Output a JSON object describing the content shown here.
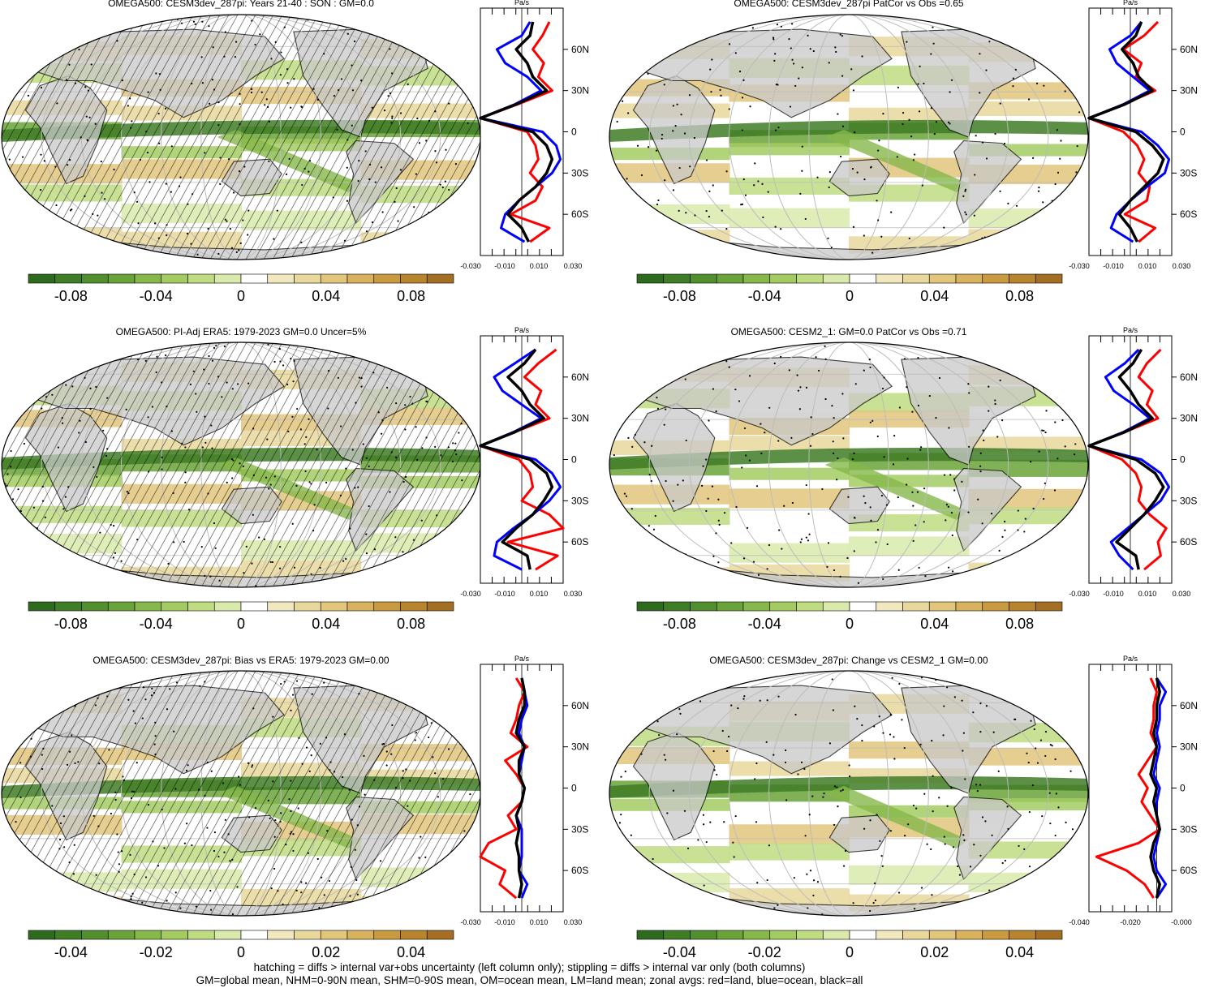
{
  "chart_data": [
    {
      "type": "heatmap",
      "title": "OMEGA500: CESM3dev_287pi: Years 21-40 : SON : GM=0.0",
      "colorbar_ticks": [
        "-0.08",
        "-0.04",
        "0",
        "0.04",
        "0.08"
      ],
      "colorbar_range": [
        -0.1,
        0.1
      ],
      "zonal_profile": {
        "units": "Pa/s",
        "x_ticks": [
          "-0.030",
          "-0.010",
          "0.010",
          "0.030"
        ],
        "xlim": [
          -0.03,
          0.03
        ],
        "y_ticks": [
          "60N",
          "30N",
          "0",
          "30S",
          "60S"
        ],
        "lat": [
          80,
          70,
          60,
          50,
          40,
          30,
          20,
          10,
          0,
          -10,
          -20,
          -30,
          -40,
          -50,
          -60,
          -70,
          -80
        ],
        "series": [
          {
            "color": "#ff0000",
            "values": [
              0.02,
              0.015,
              0.008,
              0.016,
              0.012,
              0.022,
              -0.003,
              -0.03,
              0.004,
              0.01,
              0.012,
              0.006,
              0.015,
              0.01,
              -0.008,
              0.02,
              0.006
            ]
          },
          {
            "color": "#0000ff",
            "values": [
              0.006,
              0.0,
              -0.018,
              -0.012,
              0.004,
              0.014,
              -0.005,
              -0.03,
              0.015,
              0.025,
              0.028,
              0.022,
              0.01,
              -0.002,
              -0.012,
              -0.015,
              0.002
            ]
          },
          {
            "color": "#000000",
            "values": [
              0.008,
              0.006,
              -0.004,
              0.004,
              0.008,
              0.018,
              -0.004,
              -0.03,
              0.008,
              0.018,
              0.022,
              0.018,
              0.01,
              -0.002,
              -0.01,
              0.0,
              0.005
            ]
          }
        ]
      }
    },
    {
      "type": "heatmap",
      "title": "OMEGA500: CESM3dev_287pi PatCor vs Obs =0.65",
      "colorbar_ticks": [
        "-0.08",
        "-0.04",
        "0",
        "0.04",
        "0.08"
      ],
      "colorbar_range": [
        -0.1,
        0.1
      ],
      "zonal_profile": {
        "units": "Pa/s",
        "x_ticks": [
          "-0.030",
          "-0.010",
          "0.010",
          "0.030"
        ],
        "xlim": [
          -0.03,
          0.03
        ],
        "y_ticks": [
          "60N",
          "30N",
          "0",
          "30S",
          "60S"
        ],
        "lat": [
          80,
          70,
          60,
          50,
          40,
          30,
          20,
          10,
          0,
          -10,
          -20,
          -30,
          -40,
          -50,
          -60,
          -70,
          -80
        ],
        "series": [
          {
            "color": "#ff0000",
            "values": [
              0.02,
              0.01,
              -0.005,
              0.008,
              0.004,
              0.018,
              -0.005,
              -0.03,
              -0.005,
              0.005,
              0.01,
              0.006,
              0.014,
              0.012,
              -0.004,
              0.018,
              0.006
            ]
          },
          {
            "color": "#0000ff",
            "values": [
              0.008,
              0.0,
              -0.015,
              -0.01,
              0.002,
              0.014,
              -0.005,
              -0.03,
              0.008,
              0.02,
              0.028,
              0.025,
              0.012,
              0.0,
              -0.01,
              -0.014,
              0.002
            ]
          },
          {
            "color": "#000000",
            "values": [
              0.008,
              0.004,
              -0.006,
              0.002,
              0.006,
              0.016,
              -0.004,
              -0.03,
              0.004,
              0.016,
              0.024,
              0.02,
              0.01,
              0.0,
              -0.008,
              0.0,
              0.005
            ]
          }
        ]
      }
    },
    {
      "type": "heatmap",
      "title": "OMEGA500: PI-Adj ERA5: 1979-2023 GM=0.0 Uncer=5%",
      "colorbar_ticks": [
        "-0.08",
        "-0.04",
        "0",
        "0.04",
        "0.08"
      ],
      "colorbar_range": [
        -0.1,
        0.1
      ],
      "zonal_profile": {
        "units": "Pa/s",
        "x_ticks": [
          "-0.030",
          "-0.010",
          "0.010",
          "0.030"
        ],
        "xlim": [
          -0.03,
          0.03
        ],
        "y_ticks": [
          "60N",
          "30N",
          "0",
          "30S",
          "60S"
        ],
        "lat": [
          80,
          70,
          60,
          50,
          40,
          30,
          20,
          10,
          0,
          -10,
          -20,
          -30,
          -40,
          -50,
          -60,
          -70,
          -80
        ],
        "series": [
          {
            "color": "#ff0000",
            "values": [
              0.025,
              0.012,
              0.002,
              0.014,
              0.01,
              0.02,
              -0.005,
              -0.03,
              -0.002,
              0.006,
              0.008,
              0.0,
              0.02,
              0.03,
              -0.01,
              0.026,
              0.01
            ]
          },
          {
            "color": "#0000ff",
            "values": [
              0.01,
              -0.005,
              -0.02,
              -0.014,
              0.0,
              0.014,
              -0.006,
              -0.03,
              0.01,
              0.022,
              0.028,
              0.02,
              0.008,
              -0.006,
              -0.018,
              -0.02,
              0.0
            ]
          },
          {
            "color": "#000000",
            "values": [
              0.01,
              0.002,
              -0.01,
              0.0,
              0.006,
              0.016,
              -0.005,
              -0.03,
              0.006,
              0.018,
              0.022,
              0.016,
              0.008,
              -0.004,
              -0.014,
              0.004,
              0.006
            ]
          }
        ]
      }
    },
    {
      "type": "heatmap",
      "title": "OMEGA500: CESM2_1: GM=0.0 PatCor vs Obs =0.71",
      "colorbar_ticks": [
        "-0.08",
        "-0.04",
        "0",
        "0.04",
        "0.08"
      ],
      "colorbar_range": [
        -0.1,
        0.1
      ],
      "zonal_profile": {
        "units": "Pa/s",
        "x_ticks": [
          "-0.030",
          "-0.010",
          "0.010",
          "0.030"
        ],
        "xlim": [
          -0.03,
          0.03
        ],
        "y_ticks": [
          "60N",
          "30N",
          "0",
          "30S",
          "60S"
        ],
        "lat": [
          80,
          70,
          60,
          50,
          40,
          30,
          20,
          10,
          0,
          -10,
          -20,
          -30,
          -40,
          -50,
          -60,
          -70,
          -80
        ],
        "series": [
          {
            "color": "#ff0000",
            "values": [
              0.022,
              0.012,
              0.006,
              0.016,
              0.012,
              0.02,
              -0.004,
              -0.03,
              -0.006,
              0.004,
              0.008,
              0.006,
              0.014,
              0.026,
              0.02,
              0.022,
              0.01
            ]
          },
          {
            "color": "#0000ff",
            "values": [
              0.006,
              -0.004,
              -0.018,
              -0.012,
              0.002,
              0.014,
              -0.005,
              -0.03,
              0.008,
              0.022,
              0.028,
              0.022,
              0.01,
              -0.002,
              -0.014,
              -0.008,
              0.002
            ]
          },
          {
            "color": "#000000",
            "values": [
              0.008,
              0.002,
              -0.008,
              0.0,
              0.006,
              0.016,
              -0.004,
              -0.03,
              0.004,
              0.018,
              0.024,
              0.018,
              0.01,
              0.0,
              -0.01,
              0.004,
              0.006
            ]
          }
        ]
      }
    },
    {
      "type": "heatmap",
      "title": "OMEGA500: CESM3dev_287pi: Bias vs ERA5: 1979-2023  GM=0.00",
      "colorbar_ticks": [
        "-0.04",
        "-0.02",
        "0",
        "0.02",
        "0.04"
      ],
      "colorbar_range": [
        -0.05,
        0.05
      ],
      "zonal_profile": {
        "units": "Pa/s",
        "x_ticks": [
          "-0.030",
          "-0.010",
          "0.010",
          "0.030"
        ],
        "xlim": [
          -0.03,
          0.03
        ],
        "y_ticks": [
          "60N",
          "30N",
          "0",
          "30S",
          "60S"
        ],
        "lat": [
          80,
          70,
          60,
          50,
          40,
          30,
          20,
          10,
          0,
          -10,
          -20,
          -30,
          -40,
          -50,
          -60,
          -70,
          -80
        ],
        "series": [
          {
            "color": "#ff0000",
            "values": [
              -0.004,
              0.002,
              -0.002,
              -0.004,
              -0.008,
              0.004,
              -0.012,
              -0.004,
              0.002,
              0.0,
              -0.01,
              -0.004,
              -0.024,
              -0.03,
              -0.012,
              -0.016,
              -0.004
            ]
          },
          {
            "color": "#0000ff",
            "values": [
              0.0,
              0.002,
              0.004,
              0.0,
              -0.002,
              0.002,
              0.0,
              -0.002,
              0.002,
              0.0,
              -0.004,
              0.0,
              0.0,
              0.0,
              -0.002,
              0.004,
              0.0
            ]
          },
          {
            "color": "#000000",
            "values": [
              0.0,
              0.002,
              0.002,
              -0.002,
              -0.004,
              0.002,
              -0.002,
              -0.002,
              0.002,
              0.0,
              -0.004,
              -0.002,
              -0.004,
              -0.002,
              -0.002,
              0.0,
              -0.002
            ]
          }
        ]
      }
    },
    {
      "type": "heatmap",
      "title": "OMEGA500: CESM3dev_287pi: Change vs CESM2_1 GM=0.00",
      "colorbar_ticks": [
        "-0.04",
        "-0.02",
        "0",
        "0.02",
        "0.04"
      ],
      "colorbar_range": [
        -0.05,
        0.05
      ],
      "zonal_profile": {
        "units": "Pa/s",
        "x_ticks": [
          "-0.040",
          "-0.020",
          "-0.000"
        ],
        "xlim": [
          -0.045,
          0.01
        ],
        "y_ticks": [
          "60N",
          "30N",
          "0",
          "30S",
          "60S"
        ],
        "lat": [
          80,
          70,
          60,
          50,
          40,
          30,
          20,
          10,
          0,
          -10,
          -20,
          -30,
          -40,
          -50,
          -60,
          -70,
          -80
        ],
        "series": [
          {
            "color": "#ff0000",
            "values": [
              -0.004,
              0.0,
              -0.002,
              -0.002,
              -0.004,
              0.0,
              -0.006,
              -0.012,
              -0.006,
              -0.01,
              -0.004,
              0.002,
              -0.012,
              -0.04,
              -0.02,
              -0.008,
              -0.002
            ]
          },
          {
            "color": "#0000ff",
            "values": [
              0.0,
              0.006,
              0.002,
              0.002,
              0.0,
              0.002,
              0.0,
              -0.002,
              0.002,
              0.0,
              0.0,
              0.002,
              0.0,
              -0.002,
              0.0,
              0.006,
              0.0
            ]
          },
          {
            "color": "#000000",
            "values": [
              0.0,
              0.002,
              0.0,
              0.0,
              -0.002,
              0.0,
              -0.002,
              -0.004,
              0.0,
              -0.002,
              0.0,
              0.002,
              -0.002,
              -0.004,
              -0.002,
              0.002,
              0.0
            ]
          }
        ]
      }
    }
  ],
  "footer": {
    "line1": "hatching = diffs > internal var+obs uncertainty (left column only); stippling = diffs > internal var only (both columns)",
    "line2": "GM=global mean, NHM=0-90N mean, SHM=0-90S mean, OM=ocean mean, LM=land mean; zonal avgs: red=land, blue=ocean, black=all"
  },
  "colors": {
    "cmap": [
      "#2e6b1f",
      "#3f7d26",
      "#52902f",
      "#6aa33a",
      "#86b84b",
      "#a3cb62",
      "#c0dc83",
      "#d9eaac",
      "#ffffff",
      "#f1e8bf",
      "#e9d89c",
      "#e2c67c",
      "#d8b25d",
      "#c99a3f",
      "#b8842d",
      "#a46f22"
    ],
    "land": "#c8c8c8"
  }
}
